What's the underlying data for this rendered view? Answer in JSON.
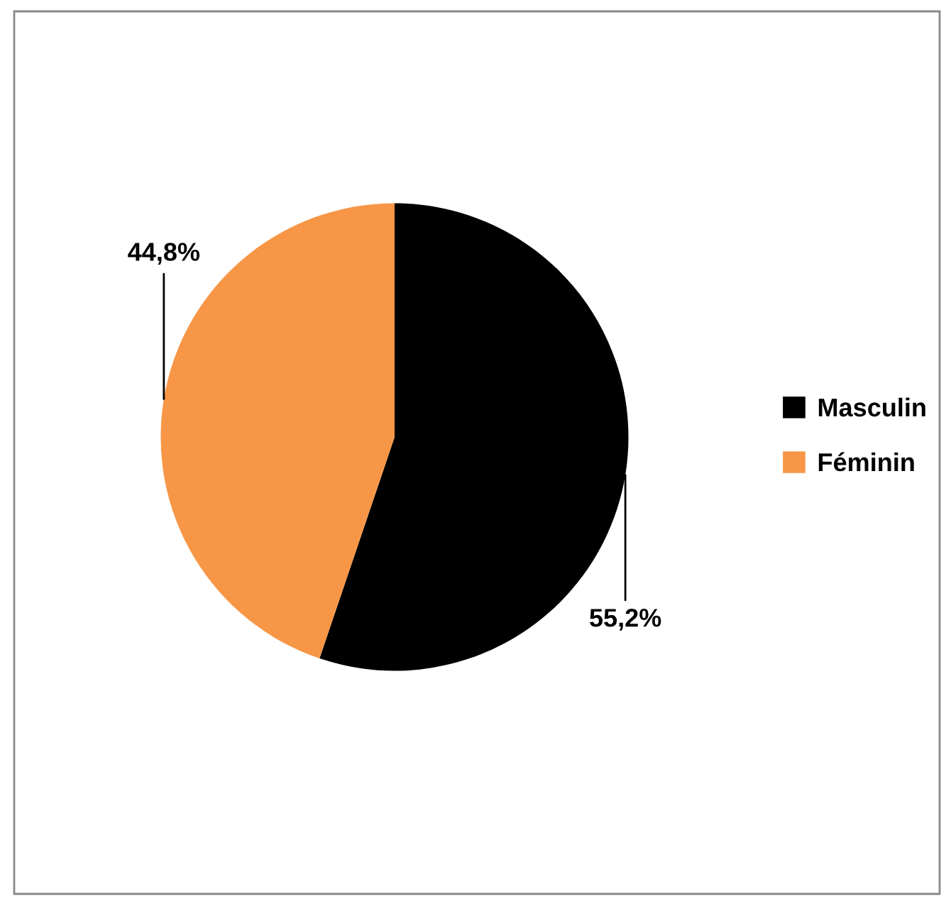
{
  "chart_data": {
    "type": "pie",
    "categories": [
      "Masculin",
      "Féminin"
    ],
    "values": [
      55.2,
      44.8
    ],
    "colors": [
      "#000000",
      "#f79646"
    ],
    "value_labels": [
      "55,2%",
      "44,8%"
    ],
    "legend": "right"
  }
}
